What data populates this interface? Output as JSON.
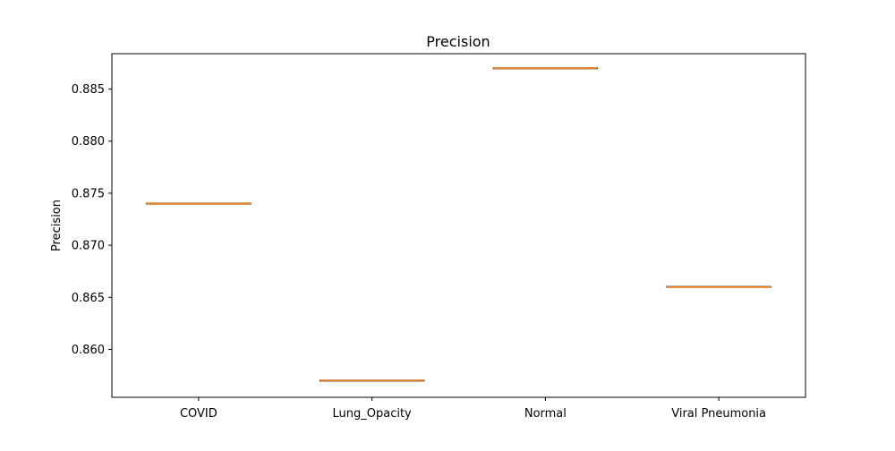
{
  "chart_data": {
    "type": "box",
    "title": "Precision",
    "xlabel": "",
    "ylabel": "Precision",
    "categories": [
      "COVID",
      "Lung_Opacity",
      "Normal",
      "Viral Pneumonia"
    ],
    "values": [
      0.874,
      0.857,
      0.887,
      0.866
    ],
    "ylim": [
      0.8554,
      0.8884
    ],
    "yticks": [
      0.86,
      0.865,
      0.87,
      0.875,
      0.88,
      0.885
    ],
    "ytick_labels": [
      "0.860",
      "0.865",
      "0.870",
      "0.875",
      "0.880",
      "0.885"
    ],
    "grid": false,
    "colors": {
      "box_edge": "#000000",
      "median": "#ff7f0e",
      "axes": "#000000"
    }
  }
}
